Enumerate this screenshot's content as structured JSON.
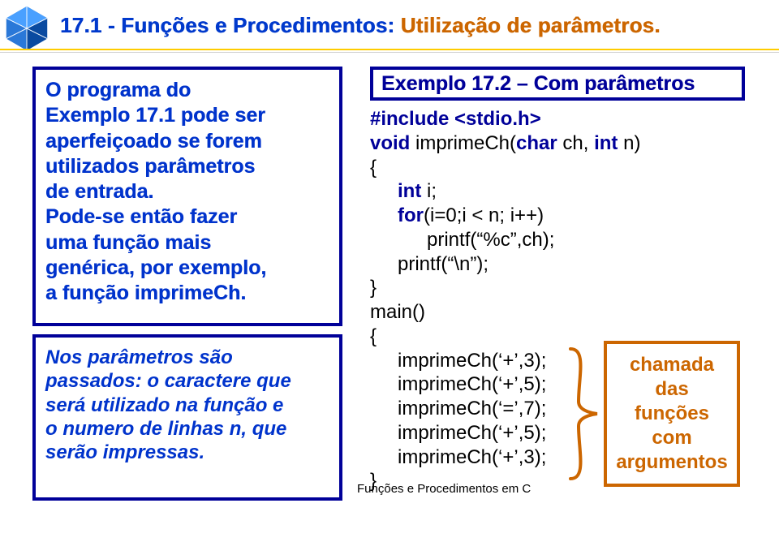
{
  "title_part1": "17.1 - Funções e Procedimentos:",
  "title_part2": " Utilização de parâmetros.",
  "title_color_blue": "#0039cc",
  "title_color_orange": "#cc6600",
  "left_box1_html": "O programa do<br>Exemplo 17.1 pode ser<br>aperfeiçoado se forem<br>utilizados parâmetros<br>de entrada.<br>Pode-se então fazer<br>uma função mais<br>genérica, por exemplo,<br>a função <span class='funcname'>imprimeCh</span>.",
  "left_box2_html": "Nos parâmetros são<br>passados: o caractere que<br>será utilizado na função e<br>o numero de linhas <b>n</b>, que<br>serão impressas.",
  "example_header": "Exemplo 17.2 – Com parâmetros",
  "code_lines": [
    {
      "cls": "",
      "html": "<span class='kw'>#include</span> <span class='inc'>&lt;stdio.h&gt;</span>"
    },
    {
      "cls": "",
      "html": "<span class='kw'>void</span> imprimeCh(<span class='kw'>char</span> ch, <span class='kw'>int</span> n)"
    },
    {
      "cls": "",
      "html": "{"
    },
    {
      "cls": "indent1",
      "html": "<span class='kw'>int</span> i;"
    },
    {
      "cls": "indent1",
      "html": "<span class='kw'>for</span>(i=0;i &lt; n; i++)"
    },
    {
      "cls": "indent2",
      "html": "printf(<span class='str'>“%c”</span>,ch);"
    },
    {
      "cls": "indent1",
      "html": "printf(<span class='str'>“\\n”</span>);"
    },
    {
      "cls": "",
      "html": "}"
    },
    {
      "cls": "",
      "html": "main()"
    },
    {
      "cls": "",
      "html": "{"
    },
    {
      "cls": "indent1",
      "html": "imprimeCh(‘+’,3);"
    },
    {
      "cls": "indent1",
      "html": "imprimeCh(‘+’,5);"
    },
    {
      "cls": "indent1",
      "html": "imprimeCh(‘=’,7);"
    },
    {
      "cls": "indent1",
      "html": "imprimeCh(‘+’,5);"
    },
    {
      "cls": "indent1",
      "html": "imprimeCh(‘+’,3);"
    },
    {
      "cls": "",
      "html": "}"
    }
  ],
  "orange_box_html": "chamada<br>das<br>funções<br>com<br>argumentos",
  "footer_text": "Funções e Procedimentos em C",
  "brace_color": "#cc6600",
  "box_border_color": "#000099"
}
